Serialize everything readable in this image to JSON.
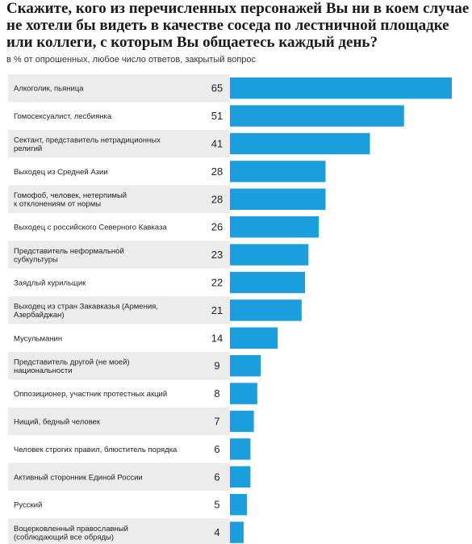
{
  "chart_data": {
    "type": "bar",
    "orientation": "horizontal",
    "title": "Скажите, кого из перечисленных персонажей Вы ни в коем случае не хотели бы видеть в качестве соседа по лестничной площадке или коллеги, с которым Вы общаетесь каждый день?",
    "subtitle": "в % от опрошенных, любое число ответов, закрытый вопрос",
    "bar_color": "#1a9fdc",
    "stripe_color": "#ececec",
    "categories": [
      [
        "Алкоголик, пьяница"
      ],
      [
        "Гомосексуалист, лесбиянка"
      ],
      [
        "Сектант, представитель нетрадиционных",
        "религий"
      ],
      [
        "Выходец из Средней Азии"
      ],
      [
        "Гомофоб, человек, нетерпимый",
        "к отклонениям от нормы"
      ],
      [
        "Выходец с российского Северного Кавказа"
      ],
      [
        "Представитель неформальной",
        "субкультуры"
      ],
      [
        "Заядлый курильщик"
      ],
      [
        "Выходец из стран Закавказья (Армения,",
        "Азербайджан)"
      ],
      [
        "Мусульманин"
      ],
      [
        "Представитель другой (не моей)",
        "национальности"
      ],
      [
        "Оппозиционер, участник протестных акций"
      ],
      [
        "Нищий, бедный человек"
      ],
      [
        "Человек строгих правил, блюститель порядка"
      ],
      [
        "Активный сторонник Единой России"
      ],
      [
        "Русский"
      ],
      [
        "Воцерковленный православный",
        "(соблюдающий все обряды)"
      ]
    ],
    "values": [
      65,
      51,
      41,
      28,
      28,
      26,
      23,
      22,
      21,
      14,
      9,
      8,
      7,
      6,
      6,
      5,
      4
    ]
  }
}
